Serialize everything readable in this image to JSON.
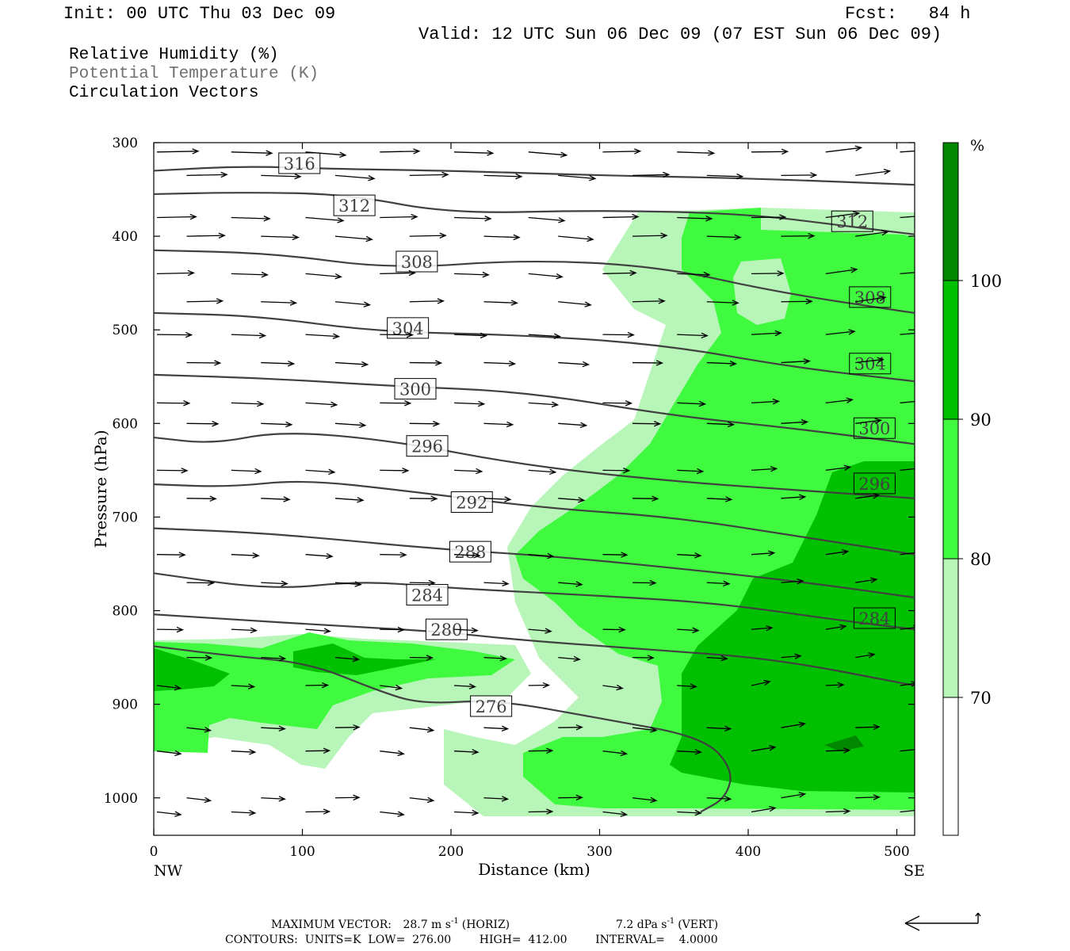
{
  "header": {
    "init": "Init: 00 UTC Thu 03 Dec 09",
    "fcst": "Fcst:   84 h",
    "valid": "Valid: 12 UTC Sun 06 Dec 09 (07 EST Sun 06 Dec 09)"
  },
  "legend": {
    "rh": "Relative Humidity (%)",
    "theta": "Potential Temperature (K)",
    "vectors": "Circulation Vectors"
  },
  "footer": {
    "max_vector_prefix": "MAXIMUM VECTOR:",
    "horiz_value": "28.7 m s",
    "horiz_exp": "-1",
    "horiz_unit": "(HORIZ)",
    "vert_value": "7.2 dPa s",
    "vert_exp": "-1",
    "vert_unit": "(VERT)",
    "contours": "CONTOURS:  UNITS=K  LOW=  276.00        HIGH=  412.00        INTERVAL=    4.0000"
  },
  "colors": {
    "rh_70_80": "#b8f5b8",
    "rh_80_90": "#40fa40",
    "rh_90_100": "#00c000",
    "rh_100": "#008800",
    "contour": "#404040",
    "vector": "#000000"
  },
  "chart_data": {
    "type": "cross-section",
    "xlabel": "Distance (km)",
    "ylabel": "Pressure (hPa)",
    "xlim": [
      0,
      512
    ],
    "ylim": [
      300,
      1040
    ],
    "x_ticks": [
      0,
      100,
      200,
      300,
      400,
      500
    ],
    "y_ticks": [
      300,
      400,
      500,
      600,
      700,
      800,
      900,
      1000
    ],
    "left_end_label": "NW",
    "right_end_label": "SE",
    "colorbar": {
      "unit": "%",
      "levels": [
        70,
        80,
        90,
        100
      ]
    },
    "theta_contours": [
      {
        "label": "316",
        "points": [
          [
            0,
            330
          ],
          [
            60,
            325
          ],
          [
            120,
            328
          ],
          [
            200,
            330
          ],
          [
            300,
            335
          ],
          [
            400,
            338
          ],
          [
            512,
            345
          ]
        ],
        "label_at": [
          98,
          322
        ]
      },
      {
        "label": "312",
        "points": [
          [
            0,
            355
          ],
          [
            60,
            353
          ],
          [
            130,
            355
          ],
          [
            200,
            376
          ],
          [
            300,
            372
          ],
          [
            400,
            376
          ],
          [
            470,
            390
          ],
          [
            512,
            398
          ]
        ],
        "label_at": [
          135,
          367
        ]
      },
      {
        "label": "308",
        "points": [
          [
            0,
            415
          ],
          [
            80,
            418
          ],
          [
            160,
            435
          ],
          [
            250,
            425
          ],
          [
            340,
            432
          ],
          [
            420,
            460
          ],
          [
            512,
            482
          ]
        ],
        "label_at": [
          177,
          427
        ]
      },
      {
        "label": "304",
        "points": [
          [
            0,
            482
          ],
          [
            70,
            485
          ],
          [
            150,
            502
          ],
          [
            240,
            505
          ],
          [
            340,
            515
          ],
          [
            430,
            540
          ],
          [
            512,
            555
          ]
        ],
        "label_at": [
          171,
          498
        ]
      },
      {
        "label": "300",
        "points": [
          [
            0,
            548
          ],
          [
            80,
            552
          ],
          [
            160,
            560
          ],
          [
            250,
            566
          ],
          [
            350,
            592
          ],
          [
            430,
            605
          ],
          [
            512,
            622
          ]
        ],
        "label_at": [
          176,
          563
        ]
      },
      {
        "label": "296",
        "points": [
          [
            0,
            615
          ],
          [
            40,
            622
          ],
          [
            85,
            608
          ],
          [
            160,
            618
          ],
          [
            250,
            645
          ],
          [
            350,
            662
          ],
          [
            440,
            672
          ],
          [
            512,
            680
          ]
        ],
        "label_at": [
          184,
          624
        ]
      },
      {
        "label": "292",
        "points": [
          [
            0,
            665
          ],
          [
            50,
            668
          ],
          [
            100,
            660
          ],
          [
            170,
            672
          ],
          [
            260,
            690
          ],
          [
            350,
            700
          ],
          [
            440,
            722
          ],
          [
            512,
            740
          ]
        ],
        "label_at": [
          214,
          684
        ]
      },
      {
        "label": "288",
        "points": [
          [
            0,
            712
          ],
          [
            60,
            716
          ],
          [
            110,
            722
          ],
          [
            190,
            734
          ],
          [
            270,
            742
          ],
          [
            360,
            756
          ],
          [
            440,
            770
          ],
          [
            512,
            786
          ]
        ],
        "label_at": [
          213,
          737
        ]
      },
      {
        "label": "284",
        "points": [
          [
            0,
            760
          ],
          [
            80,
            778
          ],
          [
            140,
            768
          ],
          [
            200,
            776
          ],
          [
            300,
            784
          ],
          [
            380,
            792
          ],
          [
            460,
            810
          ],
          [
            512,
            820
          ]
        ],
        "label_at": [
          184,
          783
        ]
      },
      {
        "label": "280",
        "points": [
          [
            0,
            804
          ],
          [
            60,
            810
          ],
          [
            120,
            816
          ],
          [
            190,
            822
          ],
          [
            250,
            832
          ],
          [
            340,
            842
          ],
          [
            420,
            852
          ],
          [
            512,
            880
          ]
        ],
        "label_at": [
          197,
          820
        ]
      },
      {
        "label": "276",
        "points": [
          [
            0,
            838
          ],
          [
            50,
            848
          ],
          [
            105,
            856
          ],
          [
            150,
            885
          ],
          [
            180,
            900
          ],
          [
            230,
            895
          ],
          [
            300,
            915
          ],
          [
            370,
            935
          ],
          [
            390,
            970
          ],
          [
            385,
            1000
          ],
          [
            368,
            1015
          ]
        ],
        "label_at": [
          227,
          902
        ]
      }
    ]
  }
}
